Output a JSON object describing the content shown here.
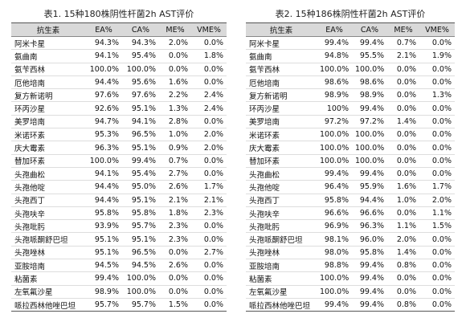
{
  "tables": [
    {
      "title": "表1. 15种180株阴性杆菌2h AST评价",
      "header": [
        "抗生素",
        "EA%",
        "CA%",
        "ME%",
        "VME%"
      ],
      "rows": [
        [
          "阿米卡星",
          "94.3%",
          "94.3%",
          "2.0%",
          "0.0%"
        ],
        [
          "氨曲南",
          "94.1%",
          "95.4%",
          "0.0%",
          "1.8%"
        ],
        [
          "氨苄西林",
          "100.0%",
          "100.0%",
          "0.0%",
          "0.0%"
        ],
        [
          "厄他培南",
          "94.4%",
          "95.6%",
          "1.6%",
          "0.0%"
        ],
        [
          "复方新诺明",
          "97.6%",
          "97.6%",
          "2.2%",
          "2.4%"
        ],
        [
          "环丙沙星",
          "92.6%",
          "95.1%",
          "1.3%",
          "2.4%"
        ],
        [
          "美罗培南",
          "94.7%",
          "94.1%",
          "2.8%",
          "0.0%"
        ],
        [
          "米诺环素",
          "95.3%",
          "96.5%",
          "1.0%",
          "2.0%"
        ],
        [
          "庆大霉素",
          "96.3%",
          "95.1%",
          "0.9%",
          "2.0%"
        ],
        [
          "替加环素",
          "100.0%",
          "99.4%",
          "0.7%",
          "0.0%"
        ],
        [
          "头孢曲松",
          "94.1%",
          "95.4%",
          "2.7%",
          "0.0%"
        ],
        [
          "头孢他啶",
          "94.4%",
          "95.0%",
          "2.6%",
          "1.7%"
        ],
        [
          "头孢西丁",
          "94.4%",
          "95.1%",
          "2.1%",
          "2.1%"
        ],
        [
          "头孢呋辛",
          "95.8%",
          "95.8%",
          "1.8%",
          "2.3%"
        ],
        [
          "头孢吡肟",
          "93.9%",
          "95.7%",
          "2.3%",
          "0.0%"
        ],
        [
          "头孢哌酮舒巴坦",
          "95.1%",
          "95.1%",
          "2.3%",
          "0.0%"
        ],
        [
          "头孢唑林",
          "95.1%",
          "96.5%",
          "0.0%",
          "2.7%"
        ],
        [
          "亚胺培南",
          "94.5%",
          "94.5%",
          "2.6%",
          "0.0%"
        ],
        [
          "粘菌素",
          "99.4%",
          "100.0%",
          "0.0%",
          "0.0%"
        ],
        [
          "左氧氟沙星",
          "98.9%",
          "100.0%",
          "0.0%",
          "0.0%"
        ],
        [
          "哌拉西林他唑巴坦",
          "95.7%",
          "95.7%",
          "1.5%",
          "0.0%"
        ]
      ]
    },
    {
      "title": "表2. 15种186株阴性杆菌2h AST评价",
      "header": [
        "抗生素",
        "EA%",
        "CA%",
        "ME%",
        "VME%"
      ],
      "rows": [
        [
          "阿米卡星",
          "99.4%",
          "99.4%",
          "0.7%",
          "0.0%"
        ],
        [
          "氨曲南",
          "94.8%",
          "95.5%",
          "2.1%",
          "1.9%"
        ],
        [
          "氨苄西林",
          "100.0%",
          "100.0%",
          "0.0%",
          "0.0%"
        ],
        [
          "厄他培南",
          "98.6%",
          "98.6%",
          "0.0%",
          "0.0%"
        ],
        [
          "复方新诺明",
          "98.9%",
          "98.9%",
          "0.0%",
          "1.3%"
        ],
        [
          "环丙沙星",
          "100%",
          "99.4%",
          "0.0%",
          "0.0%"
        ],
        [
          "美罗培南",
          "97.2%",
          "97.2%",
          "1.4%",
          "0.0%"
        ],
        [
          "米诺环素",
          "100.0%",
          "100.0%",
          "0.0%",
          "0.0%"
        ],
        [
          "庆大霉素",
          "100.0%",
          "100.0%",
          "0.0%",
          "0.0%"
        ],
        [
          "替加环素",
          "100.0%",
          "100.0%",
          "0.0%",
          "0.0%"
        ],
        [
          "头孢曲松",
          "99.4%",
          "99.4%",
          "0.0%",
          "0.0%"
        ],
        [
          "头孢他啶",
          "96.4%",
          "95.9%",
          "1.6%",
          "1.7%"
        ],
        [
          "头孢西丁",
          "95.8%",
          "94.4%",
          "1.0%",
          "2.0%"
        ],
        [
          "头孢呋辛",
          "96.6%",
          "96.6%",
          "0.0%",
          "1.1%"
        ],
        [
          "头孢吡肟",
          "96.9%",
          "96.3%",
          "1.1%",
          "1.5%"
        ],
        [
          "头孢哌酮舒巴坦",
          "98.1%",
          "96.0%",
          "2.0%",
          "0.0%"
        ],
        [
          "头孢唑林",
          "98.0%",
          "95.8%",
          "1.4%",
          "0.0%"
        ],
        [
          "亚胺培南",
          "98.8%",
          "99.4%",
          "0.8%",
          "0.0%"
        ],
        [
          "粘菌素",
          "100.0%",
          "99.4%",
          "0.0%",
          "0.0%"
        ],
        [
          "左氧氟沙星",
          "100.0%",
          "99.4%",
          "0.0%",
          "0.0%"
        ],
        [
          "哌拉西林他唑巴坦",
          "99.4%",
          "99.4%",
          "0.8%",
          "0.0%"
        ]
      ]
    }
  ]
}
